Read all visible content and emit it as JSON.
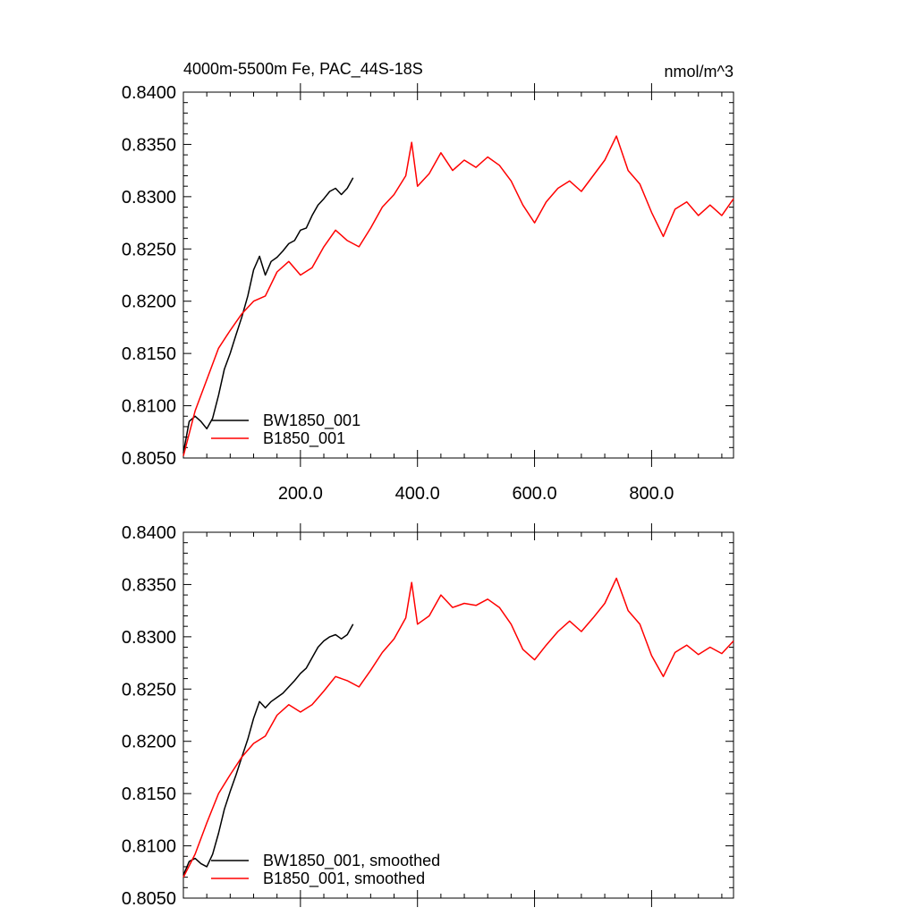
{
  "chart_data": [
    {
      "type": "line",
      "title": "4000m-5500m Fe, PAC_44S-18S",
      "units": "nmol/m^3",
      "xlim": [
        0,
        940
      ],
      "ylim": [
        0.805,
        0.84
      ],
      "x_ticks": [
        200,
        400,
        600,
        800
      ],
      "x_tick_labels": [
        "200.0",
        "400.0",
        "600.0",
        "800.0"
      ],
      "y_ticks": [
        0.805,
        0.81,
        0.815,
        0.82,
        0.825,
        0.83,
        0.835,
        0.84
      ],
      "y_tick_labels": [
        "0.8050",
        "0.8100",
        "0.8150",
        "0.8200",
        "0.8250",
        "0.8300",
        "0.8350",
        "0.8400"
      ],
      "legend_position": "bottom-left",
      "series": [
        {
          "name": "BW1850_001",
          "color": "#000000",
          "x": [
            0,
            10,
            20,
            30,
            40,
            50,
            60,
            70,
            80,
            90,
            100,
            110,
            120,
            130,
            140,
            150,
            160,
            170,
            180,
            190,
            200,
            210,
            220,
            230,
            240,
            250,
            260,
            270,
            280,
            290
          ],
          "y": [
            0.8055,
            0.8085,
            0.809,
            0.8085,
            0.8078,
            0.8088,
            0.811,
            0.8135,
            0.815,
            0.8168,
            0.8185,
            0.8205,
            0.823,
            0.8243,
            0.8225,
            0.8238,
            0.8242,
            0.8248,
            0.8255,
            0.8258,
            0.8268,
            0.827,
            0.8282,
            0.8292,
            0.8298,
            0.8305,
            0.8308,
            0.8302,
            0.8308,
            0.8318
          ]
        },
        {
          "name": "B1850_001",
          "color": "#ff0000",
          "x": [
            0,
            20,
            40,
            60,
            80,
            100,
            120,
            140,
            160,
            180,
            200,
            220,
            240,
            260,
            280,
            300,
            320,
            340,
            360,
            380,
            390,
            400,
            420,
            440,
            460,
            480,
            500,
            520,
            540,
            560,
            580,
            600,
            620,
            640,
            660,
            680,
            700,
            720,
            740,
            760,
            780,
            800,
            820,
            840,
            860,
            880,
            900,
            920,
            940
          ],
          "y": [
            0.8052,
            0.8095,
            0.8125,
            0.8155,
            0.8172,
            0.8188,
            0.82,
            0.8205,
            0.8228,
            0.8238,
            0.8225,
            0.8232,
            0.8252,
            0.8268,
            0.8258,
            0.8252,
            0.827,
            0.829,
            0.8302,
            0.832,
            0.8352,
            0.831,
            0.8322,
            0.8342,
            0.8325,
            0.8335,
            0.8328,
            0.8338,
            0.833,
            0.8315,
            0.8292,
            0.8275,
            0.8295,
            0.8308,
            0.8315,
            0.8305,
            0.832,
            0.8335,
            0.8358,
            0.8325,
            0.8312,
            0.8285,
            0.8262,
            0.8288,
            0.8295,
            0.8282,
            0.8292,
            0.8282,
            0.8298
          ]
        }
      ]
    },
    {
      "type": "line",
      "xlim": [
        0,
        940
      ],
      "ylim": [
        0.805,
        0.84
      ],
      "y_ticks": [
        0.805,
        0.81,
        0.815,
        0.82,
        0.825,
        0.83,
        0.835,
        0.84
      ],
      "y_tick_labels": [
        "0.8050",
        "0.8100",
        "0.8150",
        "0.8200",
        "0.8250",
        "0.8300",
        "0.8350",
        "0.8400"
      ],
      "legend_position": "bottom-left",
      "series": [
        {
          "name": "BW1850_001, smoothed",
          "color": "#000000",
          "x": [
            0,
            10,
            20,
            30,
            40,
            50,
            60,
            70,
            80,
            90,
            100,
            110,
            120,
            130,
            140,
            150,
            160,
            170,
            180,
            190,
            200,
            210,
            220,
            230,
            240,
            250,
            260,
            270,
            280,
            290
          ],
          "y": [
            0.8072,
            0.8085,
            0.8088,
            0.8083,
            0.808,
            0.8092,
            0.8112,
            0.8135,
            0.8152,
            0.8168,
            0.8185,
            0.8202,
            0.8222,
            0.8238,
            0.8232,
            0.8238,
            0.8242,
            0.8246,
            0.8252,
            0.8258,
            0.8265,
            0.827,
            0.828,
            0.829,
            0.8296,
            0.83,
            0.8302,
            0.8298,
            0.8302,
            0.8312
          ]
        },
        {
          "name": "B1850_001, smoothed",
          "color": "#ff0000",
          "x": [
            0,
            20,
            40,
            60,
            80,
            100,
            120,
            140,
            160,
            180,
            200,
            220,
            240,
            260,
            280,
            300,
            320,
            340,
            360,
            380,
            390,
            400,
            420,
            440,
            460,
            480,
            500,
            520,
            540,
            560,
            580,
            600,
            620,
            640,
            660,
            680,
            700,
            720,
            740,
            760,
            780,
            800,
            820,
            840,
            860,
            880,
            900,
            920,
            940
          ],
          "y": [
            0.807,
            0.8092,
            0.8122,
            0.815,
            0.8168,
            0.8185,
            0.8198,
            0.8205,
            0.8225,
            0.8235,
            0.8228,
            0.8235,
            0.8248,
            0.8262,
            0.8258,
            0.8252,
            0.8268,
            0.8285,
            0.8298,
            0.8318,
            0.8352,
            0.8312,
            0.832,
            0.834,
            0.8328,
            0.8332,
            0.833,
            0.8336,
            0.8328,
            0.8312,
            0.8288,
            0.8278,
            0.8292,
            0.8305,
            0.8315,
            0.8305,
            0.8318,
            0.8332,
            0.8356,
            0.8325,
            0.8312,
            0.8282,
            0.8262,
            0.8285,
            0.8292,
            0.8283,
            0.829,
            0.8284,
            0.8296
          ]
        }
      ]
    }
  ]
}
